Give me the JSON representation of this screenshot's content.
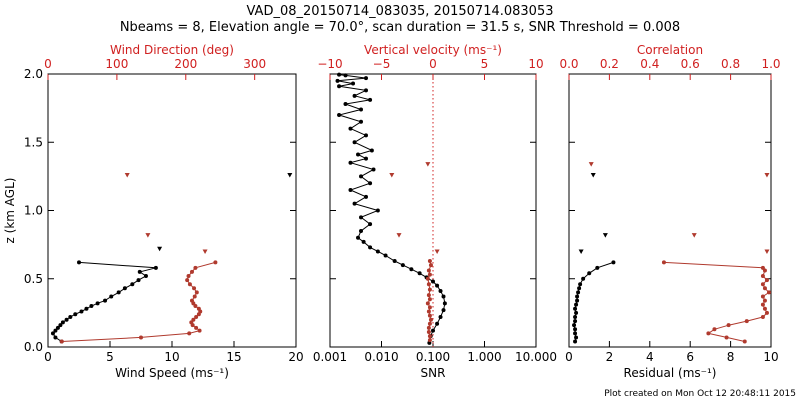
{
  "title_line1": "VAD_08_20150714_083035, 20150714.083053",
  "title_line2": "Nbeams = 8, Elevation angle = 70.0°, scan duration = 31.5 s, SNR Threshold = 0.008",
  "footer": "Plot created on Mon Oct 12 20:48:11 2015",
  "colors": {
    "black_series": "#000000",
    "red_series": "#b03a2e",
    "red_axis": "#d02020",
    "dotted_line": "#d02020"
  },
  "chart_data": [
    {
      "type": "line",
      "panel": "left",
      "ylabel": "z (km AGL)",
      "ylim": [
        0,
        2.0
      ],
      "y_ticks": [
        "0.0",
        "0.5",
        "1.0",
        "1.5",
        "2.0"
      ],
      "xlabel": "Wind Speed (ms⁻¹)",
      "xlim": [
        0,
        20
      ],
      "x_ticks": [
        "0",
        "5",
        "10",
        "15",
        "20"
      ],
      "top_xlabel": "Wind Direction (deg)",
      "top_xlim": [
        0,
        360
      ],
      "top_x_ticks": [
        "0",
        "100",
        "200",
        "300"
      ],
      "series": [
        {
          "axis": "bottom",
          "color": "black",
          "x": [
            1.1,
            0.6,
            0.4,
            0.6,
            0.8,
            1.0,
            1.2,
            1.5,
            1.8,
            2.2,
            2.7,
            3.1,
            3.5,
            4.0,
            4.6,
            5.1,
            5.7,
            6.2,
            6.8,
            7.3,
            7.9,
            7.4,
            8.7,
            2.5
          ],
          "y": [
            0.04,
            0.07,
            0.1,
            0.12,
            0.14,
            0.16,
            0.18,
            0.2,
            0.22,
            0.24,
            0.26,
            0.28,
            0.3,
            0.32,
            0.34,
            0.37,
            0.4,
            0.43,
            0.46,
            0.49,
            0.52,
            0.55,
            0.58,
            0.62
          ],
          "isolated": [
            [
              9.0,
              0.72
            ],
            [
              19.5,
              1.26
            ]
          ]
        },
        {
          "axis": "top",
          "color": "red",
          "x": [
            20,
            135,
            205,
            220,
            215,
            210,
            208,
            211,
            215,
            219,
            221,
            219,
            214,
            211,
            209,
            213,
            216,
            212,
            206,
            202,
            204,
            209,
            214,
            243
          ],
          "y": [
            0.04,
            0.07,
            0.1,
            0.12,
            0.14,
            0.16,
            0.18,
            0.2,
            0.22,
            0.24,
            0.26,
            0.28,
            0.3,
            0.32,
            0.34,
            0.37,
            0.4,
            0.43,
            0.46,
            0.49,
            0.52,
            0.55,
            0.58,
            0.62
          ],
          "isolated": [
            [
              228,
              0.7
            ],
            [
              145,
              0.82
            ],
            [
              115,
              1.26
            ]
          ]
        }
      ]
    },
    {
      "type": "line",
      "panel": "middle",
      "xlabel": "SNR",
      "xscale": "log",
      "xlim": [
        0.001,
        10.0
      ],
      "x_ticks": [
        "0.001",
        "0.010",
        "0.100",
        "1.000",
        "10.000"
      ],
      "top_xlabel": "Vertical velocity (ms⁻¹)",
      "top_xlim": [
        -10,
        10
      ],
      "top_x_ticks": [
        "−10",
        "−5",
        "0",
        "5",
        "10"
      ],
      "series": [
        {
          "axis": "bottom",
          "color": "black",
          "x": [
            0.085,
            0.09,
            0.1,
            0.12,
            0.14,
            0.16,
            0.17,
            0.16,
            0.14,
            0.12,
            0.1,
            0.075,
            0.055,
            0.038,
            0.026,
            0.018,
            0.012,
            0.0085,
            0.006,
            0.0045,
            0.0035,
            0.004,
            0.006,
            0.004,
            0.0085,
            0.003,
            0.005,
            0.0025,
            0.006,
            0.004,
            0.007,
            0.0025,
            0.005,
            0.0035,
            0.0065,
            0.003,
            0.005,
            0.0025,
            0.004,
            0.0015,
            0.004,
            0.002,
            0.006,
            0.003,
            0.005,
            0.0015,
            0.0028,
            0.0014,
            0.005,
            0.002,
            0.0015
          ],
          "y": [
            0.03,
            0.08,
            0.12,
            0.17,
            0.22,
            0.27,
            0.32,
            0.37,
            0.41,
            0.45,
            0.48,
            0.51,
            0.54,
            0.57,
            0.6,
            0.63,
            0.67,
            0.7,
            0.73,
            0.77,
            0.8,
            0.85,
            0.9,
            0.95,
            1.0,
            1.05,
            1.1,
            1.15,
            1.2,
            1.25,
            1.3,
            1.35,
            1.38,
            1.41,
            1.44,
            1.5,
            1.55,
            1.6,
            1.65,
            1.7,
            1.74,
            1.78,
            1.81,
            1.84,
            1.88,
            1.91,
            1.93,
            1.95,
            1.97,
            1.99,
            1.995
          ]
        },
        {
          "axis": "top",
          "color": "red",
          "x": [
            -0.3,
            -0.3,
            -0.4,
            -0.4,
            -0.3,
            -0.2,
            -0.3,
            -0.4,
            -0.3,
            -0.5,
            -0.3,
            -0.4,
            -0.3,
            -0.4,
            -0.5,
            -0.3,
            -0.4,
            -0.2,
            -0.3
          ],
          "y": [
            0.05,
            0.08,
            0.11,
            0.14,
            0.17,
            0.2,
            0.23,
            0.26,
            0.29,
            0.32,
            0.35,
            0.38,
            0.42,
            0.46,
            0.5,
            0.53,
            0.56,
            0.6,
            0.63
          ],
          "isolated": [
            [
              0.4,
              0.7
            ],
            [
              -3.3,
              0.82
            ],
            [
              -0.5,
              1.34
            ],
            [
              -4.0,
              1.26
            ]
          ]
        }
      ]
    },
    {
      "type": "line",
      "panel": "right",
      "xlabel": "Residual (ms⁻¹)",
      "xlim": [
        0,
        10
      ],
      "x_ticks": [
        "0",
        "2",
        "4",
        "6",
        "8",
        "10"
      ],
      "top_xlabel": "Correlation",
      "top_xlim": [
        0.0,
        1.0
      ],
      "top_x_ticks": [
        "0.0",
        "0.2",
        "0.4",
        "0.6",
        "0.8",
        "1.0"
      ],
      "series": [
        {
          "axis": "bottom",
          "color": "black",
          "x": [
            0.3,
            0.35,
            0.3,
            0.3,
            0.25,
            0.3,
            0.3,
            0.35,
            0.3,
            0.35,
            0.4,
            0.4,
            0.45,
            0.5,
            0.55,
            0.7,
            1.0,
            1.4,
            2.2
          ],
          "y": [
            0.04,
            0.07,
            0.1,
            0.13,
            0.16,
            0.19,
            0.22,
            0.25,
            0.28,
            0.31,
            0.34,
            0.37,
            0.4,
            0.43,
            0.46,
            0.5,
            0.54,
            0.58,
            0.62
          ],
          "isolated": [
            [
              0.6,
              0.7
            ],
            [
              1.8,
              0.82
            ],
            [
              1.2,
              1.26
            ]
          ]
        },
        {
          "axis": "top",
          "color": "red",
          "x": [
            0.87,
            0.78,
            0.69,
            0.72,
            0.79,
            0.88,
            0.96,
            0.98,
            0.97,
            0.96,
            0.97,
            0.96,
            0.99,
            0.97,
            0.96,
            0.98,
            0.96,
            0.97,
            0.96,
            0.47
          ],
          "y": [
            0.04,
            0.07,
            0.1,
            0.13,
            0.16,
            0.19,
            0.22,
            0.25,
            0.28,
            0.31,
            0.34,
            0.37,
            0.4,
            0.43,
            0.46,
            0.49,
            0.52,
            0.56,
            0.58,
            0.62
          ],
          "isolated": [
            [
              0.98,
              0.7
            ],
            [
              0.62,
              0.82
            ],
            [
              0.98,
              1.26
            ],
            [
              0.11,
              1.34
            ]
          ]
        }
      ]
    }
  ]
}
